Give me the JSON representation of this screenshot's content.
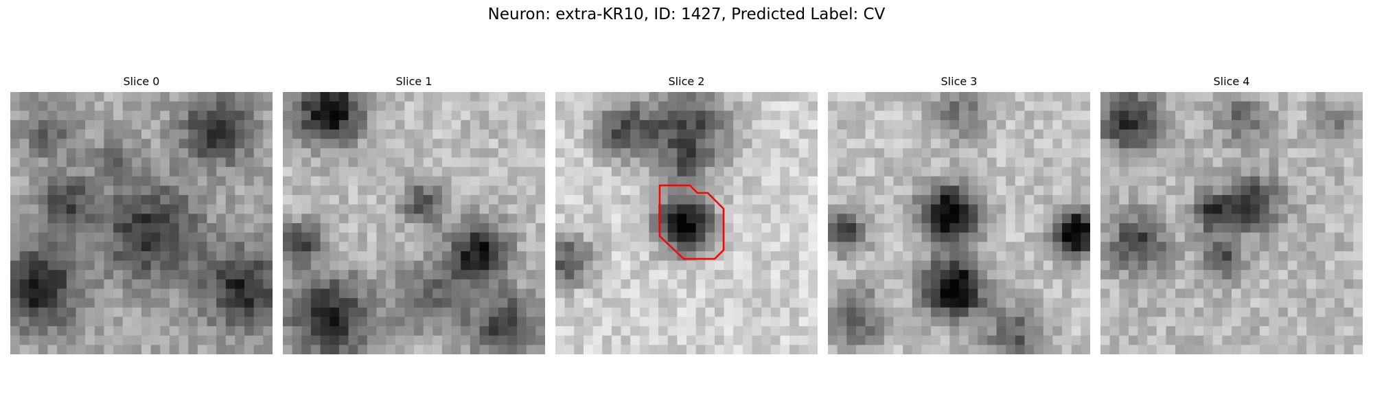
{
  "figure": {
    "title": "Neuron: extra-KR10, ID: 1427, Predicted Label: CV"
  },
  "panels": [
    {
      "title": "Slice 0",
      "has_outline": false
    },
    {
      "title": "Slice 1",
      "has_outline": false
    },
    {
      "title": "Slice 2",
      "has_outline": true
    },
    {
      "title": "Slice 3",
      "has_outline": false
    },
    {
      "title": "Slice 4",
      "has_outline": false
    }
  ],
  "colors": {
    "outline": "#ff0000",
    "colormap": "grayscale"
  }
}
